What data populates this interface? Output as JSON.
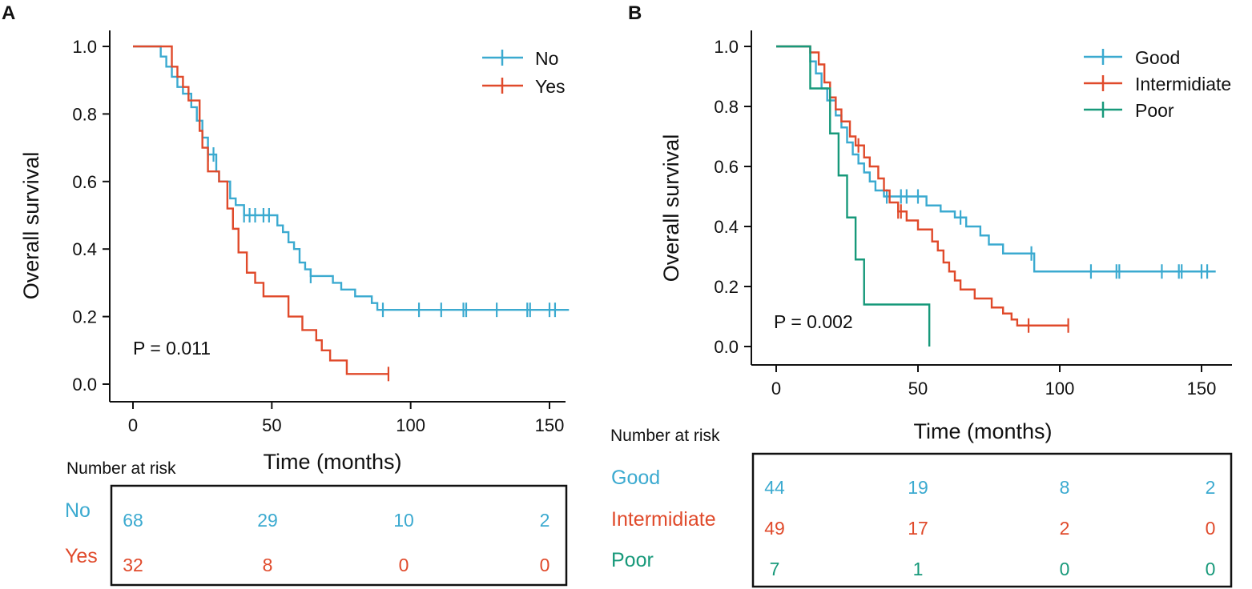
{
  "colors": {
    "blue": "#3BAAD0",
    "red": "#E04A2B",
    "green": "#17997A",
    "black": "#111111"
  },
  "chart_data": [
    {
      "type": "line",
      "panel_label": "A",
      "ylabel": "Overall survival",
      "xlabel": "Time (months)",
      "xlim": [
        0,
        150
      ],
      "ylim": [
        0,
        1
      ],
      "x_ticks": [
        "0",
        "50",
        "100",
        "150"
      ],
      "y_ticks": [
        "0.0",
        "0.2",
        "0.4",
        "0.6",
        "0.8",
        "1.0"
      ],
      "p_value": "P = 0.011",
      "legend": [
        "No",
        "Yes"
      ],
      "series": [
        {
          "name": "No",
          "color_key": "blue",
          "x": [
            0,
            9,
            10,
            12,
            14,
            16,
            18,
            21,
            23,
            25,
            27,
            30,
            31,
            35,
            37,
            40,
            49,
            52,
            54,
            56,
            58,
            60,
            62,
            64,
            72,
            75,
            80,
            86,
            88,
            90,
            103,
            157
          ],
          "y": [
            1.0,
            1.0,
            0.97,
            0.94,
            0.91,
            0.88,
            0.86,
            0.82,
            0.78,
            0.73,
            0.68,
            0.63,
            0.6,
            0.55,
            0.53,
            0.5,
            0.5,
            0.47,
            0.45,
            0.42,
            0.4,
            0.36,
            0.34,
            0.32,
            0.3,
            0.28,
            0.26,
            0.24,
            0.22,
            0.22,
            0.22,
            0.22
          ],
          "censor_x": [
            27,
            29,
            40,
            42,
            44,
            47,
            49,
            64,
            90,
            103,
            111,
            119,
            120,
            131,
            142,
            143,
            150,
            152
          ],
          "risk_numbers": [
            "68",
            "29",
            "10",
            "2"
          ]
        },
        {
          "name": "Yes",
          "color_key": "red",
          "x": [
            0,
            10,
            14,
            16,
            18,
            20,
            24,
            25,
            27,
            31,
            34,
            36,
            38,
            41,
            44,
            47,
            51,
            56,
            61,
            66,
            68,
            71,
            77,
            81,
            85,
            92
          ],
          "y": [
            1.0,
            1.0,
            0.94,
            0.91,
            0.88,
            0.84,
            0.75,
            0.7,
            0.63,
            0.6,
            0.52,
            0.46,
            0.39,
            0.33,
            0.3,
            0.26,
            0.26,
            0.2,
            0.16,
            0.13,
            0.1,
            0.07,
            0.03,
            0.03,
            0.03,
            0.03
          ],
          "censor_x": [
            92
          ],
          "risk_numbers": [
            "32",
            "8",
            "0",
            "0"
          ]
        }
      ],
      "risk_table": {
        "title": "Number at risk",
        "groups": [
          "No",
          "Yes"
        ]
      }
    },
    {
      "type": "line",
      "panel_label": "B",
      "ylabel": "Overall survival",
      "xlabel": "Time (months)",
      "xlim": [
        0,
        150
      ],
      "ylim": [
        0,
        1
      ],
      "x_ticks": [
        "0",
        "50",
        "100",
        "150"
      ],
      "y_ticks": [
        "0.0",
        "0.2",
        "0.4",
        "0.6",
        "0.8",
        "1.0"
      ],
      "p_value": "P = 0.002",
      "legend": [
        "Good",
        "Intermidiate",
        "Poor"
      ],
      "series": [
        {
          "name": "Good",
          "color_key": "blue",
          "x": [
            0,
            10,
            12,
            14,
            16,
            18,
            21,
            23,
            25,
            27,
            29,
            31,
            33,
            35,
            38,
            44,
            53,
            58,
            63,
            67,
            72,
            75,
            80,
            91,
            100,
            155
          ],
          "y": [
            1.0,
            1.0,
            0.95,
            0.91,
            0.86,
            0.82,
            0.77,
            0.73,
            0.68,
            0.64,
            0.61,
            0.58,
            0.55,
            0.52,
            0.5,
            0.5,
            0.47,
            0.45,
            0.43,
            0.4,
            0.37,
            0.34,
            0.31,
            0.25,
            0.25,
            0.25
          ],
          "censor_x": [
            39,
            44,
            46,
            50,
            65,
            90,
            111,
            120,
            121,
            136,
            142,
            143,
            150,
            152
          ]
        },
        {
          "name": "Intermidiate",
          "color_key": "red",
          "x": [
            0,
            10,
            12,
            15,
            17,
            19,
            21,
            23,
            26,
            28,
            31,
            33,
            36,
            38,
            40,
            43,
            46,
            50,
            55,
            57,
            59,
            61,
            63,
            65,
            70,
            76,
            80,
            83,
            85,
            88,
            103
          ],
          "y": [
            1.0,
            1.0,
            0.98,
            0.94,
            0.88,
            0.83,
            0.79,
            0.75,
            0.7,
            0.67,
            0.63,
            0.6,
            0.56,
            0.52,
            0.48,
            0.45,
            0.42,
            0.39,
            0.35,
            0.32,
            0.28,
            0.25,
            0.22,
            0.19,
            0.16,
            0.13,
            0.11,
            0.09,
            0.07,
            0.07,
            0.07
          ],
          "censor_x": [
            29,
            43,
            44,
            89,
            103
          ],
          "risk_numbers": [
            "49",
            "17",
            "2",
            "0"
          ]
        },
        {
          "name": "Poor",
          "color_key": "green",
          "x": [
            0,
            10,
            12,
            19,
            22,
            25,
            28,
            31,
            54,
            54
          ],
          "y": [
            1.0,
            1.0,
            0.86,
            0.71,
            0.57,
            0.43,
            0.29,
            0.14,
            0.14,
            0.0
          ],
          "censor_x": [],
          "risk_numbers": [
            "7",
            "1",
            "0",
            "0"
          ]
        }
      ],
      "good_risk_numbers": [
        "44",
        "19",
        "8",
        "2"
      ],
      "risk_table": {
        "title": "Number at risk",
        "groups": [
          "Good",
          "Intermidiate",
          "Poor"
        ]
      }
    }
  ]
}
